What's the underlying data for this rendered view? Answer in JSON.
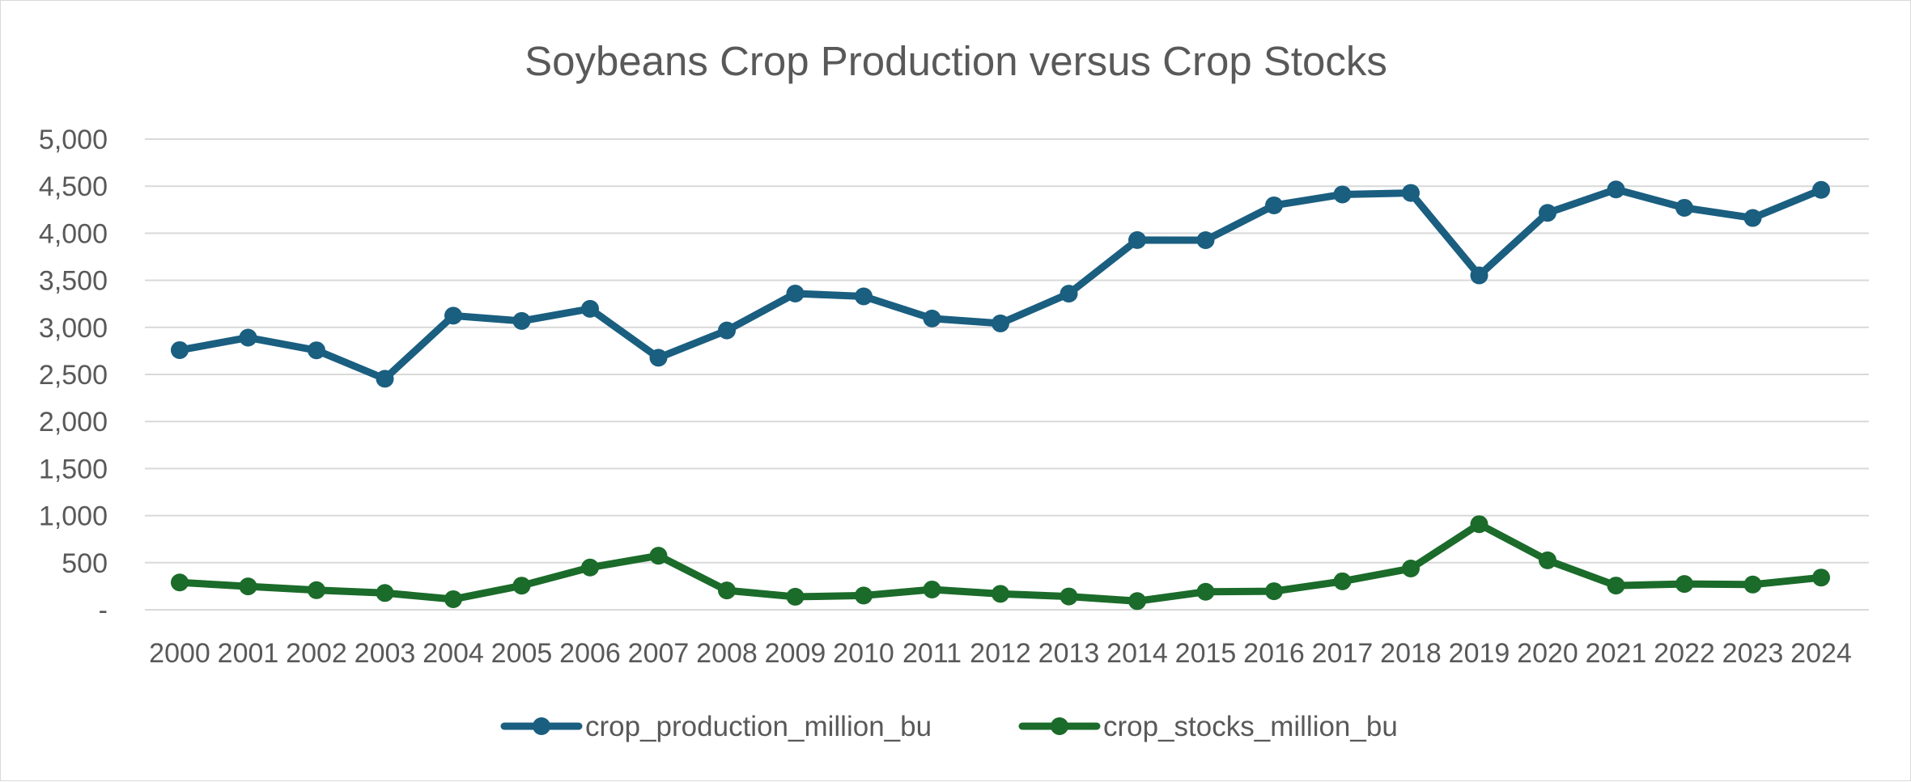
{
  "chart_data": {
    "type": "line",
    "title": "Soybeans Crop Production versus Crop Stocks",
    "xlabel": "",
    "ylabel": "",
    "categories": [
      "2000",
      "2001",
      "2002",
      "2003",
      "2004",
      "2005",
      "2006",
      "2007",
      "2008",
      "2009",
      "2010",
      "2011",
      "2012",
      "2013",
      "2014",
      "2015",
      "2016",
      "2017",
      "2018",
      "2019",
      "2020",
      "2021",
      "2022",
      "2023",
      "2024"
    ],
    "ylim": [
      0,
      5000
    ],
    "yticks": [
      0,
      500,
      1000,
      1500,
      2000,
      2500,
      3000,
      3500,
      4000,
      4500,
      5000
    ],
    "ytick_labels": [
      "-",
      "500",
      "1,000",
      "1,500",
      "2,000",
      "2,500",
      "3,000",
      "3,500",
      "4,000",
      "4,500",
      "5,000"
    ],
    "grid": true,
    "legend_position": "bottom",
    "series": [
      {
        "name": "crop_production_million_bu",
        "color": "#1a5e80",
        "values": [
          2758,
          2891,
          2756,
          2454,
          3124,
          3068,
          3197,
          2677,
          2967,
          3359,
          3329,
          3094,
          3042,
          3358,
          3927,
          3926,
          4296,
          4412,
          4428,
          3552,
          4216,
          4465,
          4270,
          4162,
          4461
        ]
      },
      {
        "name": "crop_stocks_million_bu",
        "color": "#1b6b2a",
        "values": [
          290,
          248,
          208,
          178,
          112,
          256,
          449,
          574,
          205,
          138,
          151,
          215,
          169,
          141,
          92,
          191,
          197,
          302,
          438,
          909,
          525,
          257,
          274,
          268,
          342
        ]
      }
    ]
  }
}
